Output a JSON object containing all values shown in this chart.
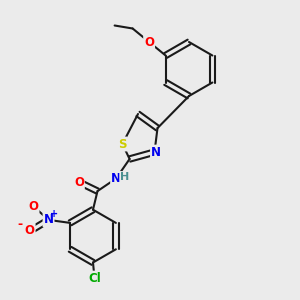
{
  "bg_color": "#ebebeb",
  "bond_color": "#1a1a1a",
  "bond_width": 1.5,
  "atom_colors": {
    "O": "#ff0000",
    "N": "#0000ee",
    "S": "#cccc00",
    "Cl": "#00aa00",
    "H": "#4a9090",
    "C": "#1a1a1a"
  },
  "font_size": 8.5,
  "fig_size": [
    3.0,
    3.0
  ],
  "dpi": 100
}
